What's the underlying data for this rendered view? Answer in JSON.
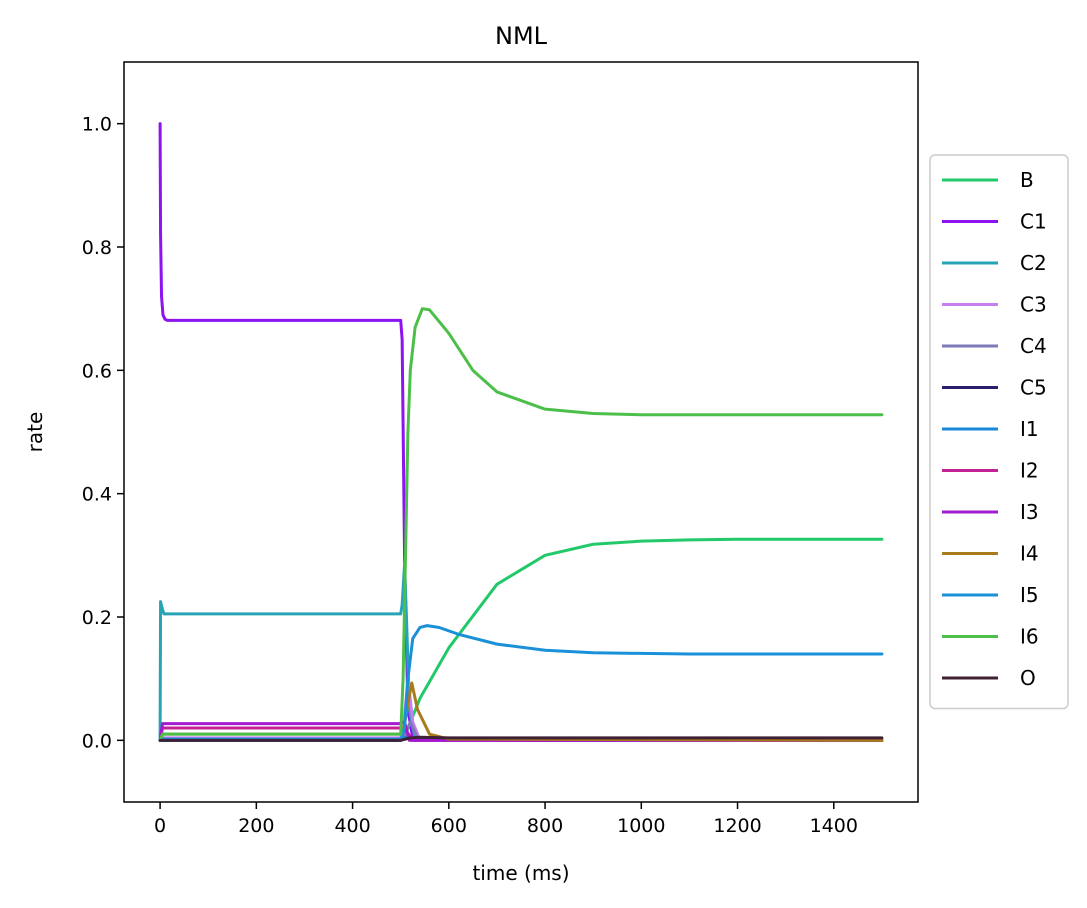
{
  "chart_data": {
    "type": "line",
    "title": "NML",
    "xlabel": "time (ms)",
    "ylabel": "rate",
    "xlim": [
      -75,
      1575
    ],
    "ylim": [
      -0.1,
      1.1
    ],
    "xticks": [
      0,
      200,
      400,
      600,
      800,
      1000,
      1200,
      1400
    ],
    "yticks": [
      0.0,
      0.2,
      0.4,
      0.6,
      0.8,
      1.0
    ],
    "xtick_labels": [
      "0",
      "200",
      "400",
      "600",
      "800",
      "1000",
      "1200",
      "1400"
    ],
    "ytick_labels": [
      "0.0",
      "0.2",
      "0.4",
      "0.6",
      "0.8",
      "1.0"
    ],
    "grid": false,
    "legend_position": "outside-right",
    "series": [
      {
        "name": "B",
        "color": "#22c96a",
        "x": [
          0,
          500,
          510,
          540,
          600,
          700,
          800,
          900,
          1000,
          1100,
          1200,
          1300,
          1400,
          1500
        ],
        "y": [
          0.0,
          0.0,
          0.01,
          0.068,
          0.15,
          0.253,
          0.3,
          0.318,
          0.323,
          0.325,
          0.326,
          0.326,
          0.326,
          0.326
        ]
      },
      {
        "name": "C1",
        "color": "#8d14f0",
        "x": [
          0,
          1,
          3,
          6,
          10,
          15,
          30,
          100,
          300,
          500,
          503,
          508,
          515,
          525,
          600,
          1500
        ],
        "y": [
          1.0,
          0.82,
          0.72,
          0.69,
          0.683,
          0.681,
          0.681,
          0.681,
          0.681,
          0.681,
          0.65,
          0.3,
          0.05,
          0.004,
          0.0,
          0.0
        ]
      },
      {
        "name": "C2",
        "color": "#26a4b6",
        "x": [
          0,
          1,
          4,
          8,
          15,
          50,
          500,
          503,
          508,
          512,
          518,
          530,
          600,
          1500
        ],
        "y": [
          0.0,
          0.225,
          0.215,
          0.205,
          0.205,
          0.205,
          0.205,
          0.22,
          0.285,
          0.2,
          0.05,
          0.004,
          0.0,
          0.0
        ]
      },
      {
        "name": "C3",
        "color": "#c77ff0",
        "x": [
          0,
          5,
          500,
          508,
          515,
          525,
          540,
          1500
        ],
        "y": [
          0.0,
          0.004,
          0.004,
          0.04,
          0.1,
          0.03,
          0.0,
          0.0
        ]
      },
      {
        "name": "C4",
        "color": "#7d7ab8",
        "x": [
          0,
          5,
          500,
          510,
          520,
          535,
          1500
        ],
        "y": [
          0.0,
          0.001,
          0.001,
          0.01,
          0.03,
          0.004,
          0.0
        ]
      },
      {
        "name": "C5",
        "color": "#2a1f6b",
        "x": [
          0,
          5,
          500,
          515,
          530,
          1500
        ],
        "y": [
          0.0,
          0.0,
          0.0,
          0.005,
          0.002,
          0.0
        ]
      },
      {
        "name": "I1",
        "color": "#1889d8",
        "x": [
          0,
          5,
          500,
          510,
          520,
          1500
        ],
        "y": [
          0.0,
          0.002,
          0.002,
          0.005,
          0.002,
          0.0
        ]
      },
      {
        "name": "I2",
        "color": "#c22294",
        "x": [
          0,
          5,
          500,
          512,
          525,
          1500
        ],
        "y": [
          0.0,
          0.02,
          0.02,
          0.015,
          0.0,
          0.0
        ]
      },
      {
        "name": "I3",
        "color": "#a21bd0",
        "x": [
          0,
          5,
          500,
          508,
          518,
          1500
        ],
        "y": [
          0.0,
          0.027,
          0.027,
          0.03,
          0.0,
          0.0
        ]
      },
      {
        "name": "I4",
        "color": "#a87b1d",
        "x": [
          0,
          5,
          500,
          505,
          515,
          523,
          535,
          560,
          600,
          1500
        ],
        "y": [
          0.0,
          0.01,
          0.01,
          0.012,
          0.06,
          0.093,
          0.05,
          0.01,
          0.002,
          0.0
        ]
      },
      {
        "name": "I5",
        "color": "#1a90d8",
        "x": [
          0,
          500,
          508,
          515,
          525,
          540,
          555,
          580,
          620,
          700,
          800,
          900,
          1000,
          1100,
          1200,
          1300,
          1400,
          1500
        ],
        "y": [
          0.0,
          0.0,
          0.02,
          0.1,
          0.165,
          0.183,
          0.186,
          0.183,
          0.172,
          0.156,
          0.146,
          0.142,
          0.141,
          0.14,
          0.14,
          0.14,
          0.14,
          0.14
        ]
      },
      {
        "name": "I6",
        "color": "#4cbf4a",
        "x": [
          0,
          5,
          500,
          505,
          510,
          515,
          520,
          530,
          545,
          560,
          600,
          650,
          700,
          800,
          900,
          1000,
          1100,
          1200,
          1300,
          1400,
          1500
        ],
        "y": [
          0.0,
          0.01,
          0.01,
          0.1,
          0.3,
          0.5,
          0.6,
          0.67,
          0.7,
          0.698,
          0.66,
          0.6,
          0.565,
          0.537,
          0.53,
          0.528,
          0.528,
          0.528,
          0.528,
          0.528,
          0.528
        ]
      },
      {
        "name": "O",
        "color": "#3f2035",
        "x": [
          0,
          5,
          500,
          520,
          540,
          600,
          1500
        ],
        "y": [
          0.0,
          0.0,
          0.0,
          0.004,
          0.005,
          0.004,
          0.004
        ]
      }
    ]
  }
}
